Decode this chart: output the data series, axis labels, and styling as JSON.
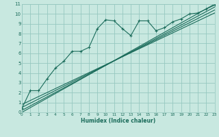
{
  "bg_color": "#c8e8e0",
  "grid_color": "#96c8c0",
  "line_color": "#1a6b5a",
  "xlabel": "Humidex (Indice chaleur)",
  "xlim": [
    0,
    23
  ],
  "ylim": [
    0,
    11
  ],
  "xticks": [
    0,
    1,
    2,
    3,
    4,
    5,
    6,
    7,
    8,
    9,
    10,
    11,
    12,
    13,
    14,
    15,
    16,
    17,
    18,
    19,
    20,
    21,
    22,
    23
  ],
  "yticks": [
    0,
    1,
    2,
    3,
    4,
    5,
    6,
    7,
    8,
    9,
    10,
    11
  ],
  "curve_x": [
    0,
    1,
    2,
    3,
    4,
    5,
    6,
    7,
    8,
    9,
    10,
    11,
    12,
    13,
    14,
    15,
    16,
    17,
    18,
    19,
    20,
    21,
    22,
    23
  ],
  "curve_y": [
    0.4,
    2.2,
    2.2,
    3.4,
    4.5,
    5.2,
    6.2,
    6.2,
    6.6,
    8.5,
    9.4,
    9.3,
    8.5,
    7.8,
    9.3,
    9.3,
    8.3,
    8.6,
    9.2,
    9.5,
    10.0,
    10.1,
    10.5,
    10.9
  ],
  "straight_lines": [
    {
      "x": [
        0,
        23
      ],
      "y": [
        0.0,
        11.0
      ]
    },
    {
      "x": [
        0,
        23
      ],
      "y": [
        0.2,
        10.7
      ]
    },
    {
      "x": [
        0,
        23
      ],
      "y": [
        0.5,
        10.4
      ]
    },
    {
      "x": [
        0,
        23
      ],
      "y": [
        0.8,
        10.1
      ]
    }
  ]
}
